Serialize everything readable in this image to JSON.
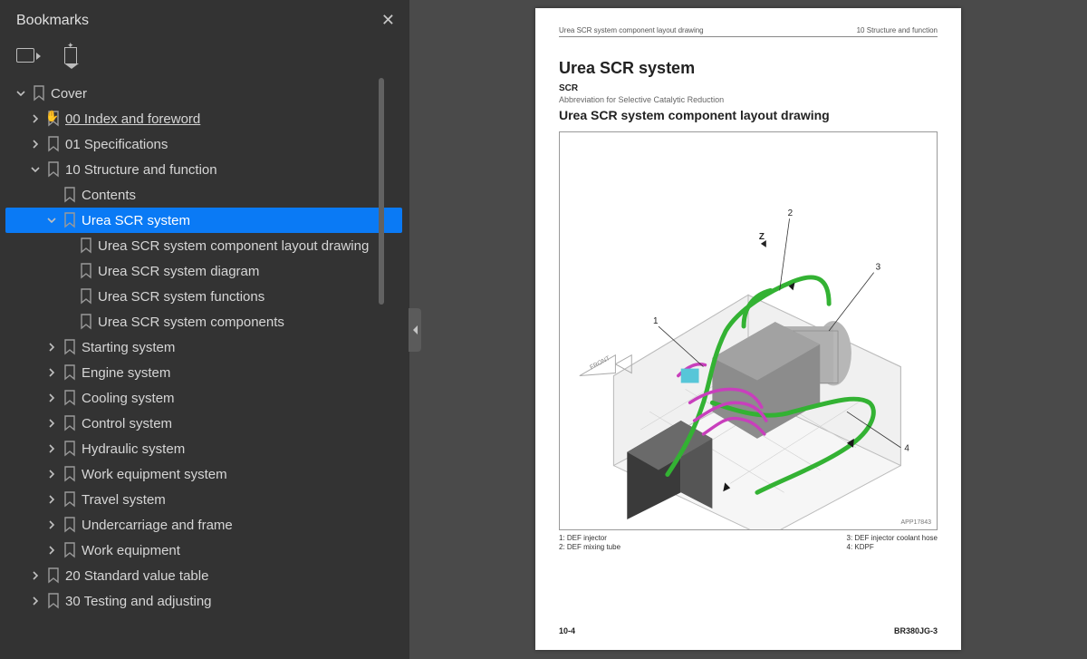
{
  "sidebar": {
    "title": "Bookmarks",
    "tree": [
      {
        "depth": 0,
        "chev": "down",
        "label": "Cover"
      },
      {
        "depth": 1,
        "chev": "right",
        "label": "00 Index and foreword",
        "underline": true,
        "cursor": true
      },
      {
        "depth": 1,
        "chev": "right",
        "label": "01 Specifications"
      },
      {
        "depth": 1,
        "chev": "down",
        "label": "10 Structure and function"
      },
      {
        "depth": 2,
        "chev": "none",
        "label": "Contents"
      },
      {
        "depth": 2,
        "chev": "down",
        "label": "Urea SCR system",
        "selected": true
      },
      {
        "depth": 3,
        "chev": "none",
        "label": "Urea SCR system component layout drawing"
      },
      {
        "depth": 3,
        "chev": "none",
        "label": "Urea SCR system diagram"
      },
      {
        "depth": 3,
        "chev": "none",
        "label": "Urea SCR system functions"
      },
      {
        "depth": 3,
        "chev": "none",
        "label": "Urea SCR system components"
      },
      {
        "depth": 2,
        "chev": "right",
        "label": "Starting system"
      },
      {
        "depth": 2,
        "chev": "right",
        "label": "Engine system"
      },
      {
        "depth": 2,
        "chev": "right",
        "label": "Cooling system"
      },
      {
        "depth": 2,
        "chev": "right",
        "label": "Control system"
      },
      {
        "depth": 2,
        "chev": "right",
        "label": "Hydraulic system"
      },
      {
        "depth": 2,
        "chev": "right",
        "label": "Work equipment system"
      },
      {
        "depth": 2,
        "chev": "right",
        "label": "Travel system"
      },
      {
        "depth": 2,
        "chev": "right",
        "label": "Undercarriage and frame"
      },
      {
        "depth": 2,
        "chev": "right",
        "label": "Work equipment"
      },
      {
        "depth": 1,
        "chev": "right",
        "label": "20 Standard value table"
      },
      {
        "depth": 1,
        "chev": "right",
        "label": "30 Testing and adjusting"
      }
    ]
  },
  "page": {
    "header_left": "Urea SCR system component layout drawing",
    "header_right": "10 Structure and function",
    "title": "Urea SCR system",
    "sub1": "SCR",
    "sub2": "Abbreviation for Selective Catalytic Reduction",
    "h2": "Urea SCR system component layout drawing",
    "diag_tag": "APP17843",
    "legend_left": [
      "1: DEF injector",
      "2: DEF mixing tube"
    ],
    "legend_right": [
      "3: DEF injector coolant hose",
      "4: KDPF"
    ],
    "footer_left": "10-4",
    "footer_right": "BR380JG-3"
  },
  "colors": {
    "sidebar_bg": "#333333",
    "viewer_bg": "#4a4a4a",
    "select_bg": "#0a7af5",
    "page_bg": "#ffffff",
    "pipe_green": "#33b233",
    "pipe_magenta": "#c83fbc",
    "machine_gray": "#8c8c8c"
  }
}
